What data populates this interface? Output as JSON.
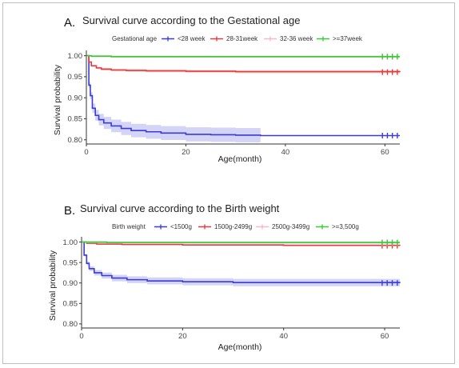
{
  "chart_data": [
    {
      "panel_letter": "A.",
      "title": "Survival curve according to the Gestational age",
      "type": "line",
      "legend_title": "Gestational age",
      "legend_position": "top",
      "xlabel": "Age(month)",
      "ylabel": "Survival probability",
      "xlim": [
        0,
        63
      ],
      "ylim": [
        0.79,
        1.005
      ],
      "xticks": [
        "0",
        "20",
        "40",
        "60"
      ],
      "yticks": [
        "0.80",
        "0.85",
        "0.90",
        "0.95",
        "1.00"
      ],
      "series": [
        {
          "name": "<28 week",
          "color": "#3b3bd6",
          "x": [
            0,
            0.5,
            0.8,
            1.2,
            1.8,
            2.5,
            3.5,
            5,
            7,
            9,
            12,
            15,
            20,
            25,
            30,
            35,
            63
          ],
          "y": [
            1.0,
            0.93,
            0.905,
            0.875,
            0.858,
            0.848,
            0.84,
            0.833,
            0.827,
            0.822,
            0.819,
            0.816,
            0.813,
            0.812,
            0.811,
            0.81,
            0.81
          ],
          "censor_x": [
            59.5,
            60.5,
            61.5,
            62.5
          ],
          "ci_until": 35
        },
        {
          "name": "28-31week",
          "color": "#e33b3b",
          "x": [
            0,
            0.5,
            1,
            2,
            3,
            5,
            8,
            12,
            20,
            30,
            63
          ],
          "y": [
            1.0,
            0.985,
            0.976,
            0.971,
            0.968,
            0.966,
            0.965,
            0.964,
            0.963,
            0.962,
            0.961
          ],
          "censor_x": [
            59.5,
            60.5,
            61.5,
            62.5
          ],
          "ci_until": 63
        },
        {
          "name": "32-36 week",
          "color": "#f5b8c8",
          "x": [
            0,
            1,
            5,
            63
          ],
          "y": [
            1.0,
            0.998,
            0.997,
            0.997
          ],
          "censor_x": [
            59.5,
            60.5,
            61.5,
            62.5
          ],
          "ci_until": 63
        },
        {
          "name": ">=37week",
          "color": "#33cc33",
          "x": [
            0,
            1,
            5,
            63
          ],
          "y": [
            1.0,
            0.999,
            0.998,
            0.998
          ],
          "censor_x": [
            59.5,
            60.5,
            61.5,
            62.5
          ],
          "ci_until": 63
        }
      ]
    },
    {
      "panel_letter": "B.",
      "title": "Survival curve according to the Birth weight",
      "type": "line",
      "legend_title": "Birth weight",
      "legend_position": "top",
      "xlabel": "Age(month)",
      "ylabel": "Survival probability",
      "xlim": [
        0,
        63
      ],
      "ylim": [
        0.79,
        1.005
      ],
      "xticks": [
        "0",
        "20",
        "40",
        "60"
      ],
      "yticks": [
        "0.80",
        "0.85",
        "0.90",
        "0.95",
        "1.00"
      ],
      "series": [
        {
          "name": "<1500g",
          "color": "#3b3bd6",
          "x": [
            0,
            0.5,
            1,
            1.5,
            2.5,
            4,
            6,
            9,
            13,
            20,
            30,
            63
          ],
          "y": [
            1.0,
            0.968,
            0.948,
            0.935,
            0.925,
            0.918,
            0.912,
            0.908,
            0.905,
            0.903,
            0.901,
            0.9
          ],
          "censor_x": [
            59.5,
            60.5,
            61.5,
            62.5
          ],
          "ci_until": 63
        },
        {
          "name": "1500g-2499g",
          "color": "#e33b3b",
          "x": [
            0,
            1,
            3,
            8,
            20,
            40,
            63
          ],
          "y": [
            1.0,
            0.997,
            0.995,
            0.994,
            0.993,
            0.992,
            0.991
          ],
          "censor_x": [
            59.5,
            60.5,
            61.5,
            62.5
          ],
          "ci_until": 63
        },
        {
          "name": "2500g-3499g",
          "color": "#f5b8c8",
          "x": [
            0,
            1,
            5,
            63
          ],
          "y": [
            1.0,
            0.999,
            0.998,
            0.998
          ],
          "censor_x": [
            59.5,
            60.5,
            61.5,
            62.5
          ],
          "ci_until": 63
        },
        {
          "name": ">=3,500g",
          "color": "#33cc33",
          "x": [
            0,
            1,
            5,
            63
          ],
          "y": [
            1.0,
            1.0,
            0.999,
            0.999
          ],
          "censor_x": [
            59.5,
            60.5,
            61.5,
            62.5
          ],
          "ci_until": 63
        }
      ]
    }
  ]
}
